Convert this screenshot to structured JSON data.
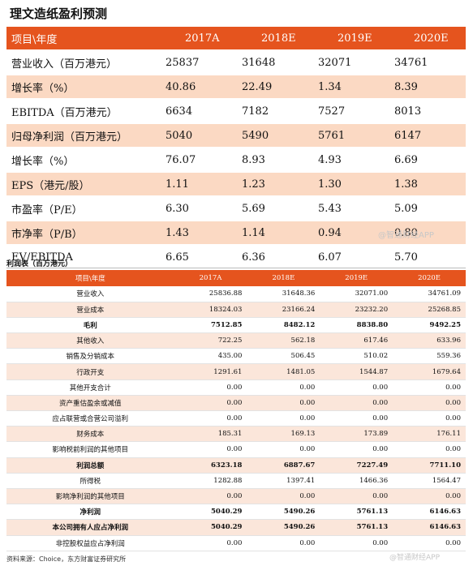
{
  "forecast": {
    "title": "理文造纸盈利预测",
    "header": [
      "项目\\年度",
      "2017A",
      "2018E",
      "2019E",
      "2020E"
    ],
    "rows": [
      {
        "label": "营业收入（百万港元）",
        "values": [
          "25837",
          "31648",
          "32071",
          "34761"
        ]
      },
      {
        "label": "增长率（%）",
        "values": [
          "40.86",
          "22.49",
          "1.34",
          "8.39"
        ]
      },
      {
        "label": "EBITDA（百万港元）",
        "values": [
          "6634",
          "7182",
          "7527",
          "8013"
        ]
      },
      {
        "label": "归母净利润（百万港元）",
        "values": [
          "5040",
          "5490",
          "5761",
          "6147"
        ]
      },
      {
        "label": "增长率（%）",
        "values": [
          "76.07",
          "8.93",
          "4.93",
          "6.69"
        ]
      },
      {
        "label": "EPS（港元/股）",
        "values": [
          "1.11",
          "1.23",
          "1.30",
          "1.38"
        ]
      },
      {
        "label": "市盈率（P/E）",
        "values": [
          "6.30",
          "5.69",
          "5.43",
          "5.09"
        ]
      },
      {
        "label": "市净率（P/B）",
        "values": [
          "1.43",
          "1.14",
          "0.94",
          "0.80"
        ]
      },
      {
        "label": "EV/EBITDA",
        "values": [
          "6.65",
          "6.36",
          "6.07",
          "5.70"
        ]
      }
    ],
    "watermark": "@智通财经APP"
  },
  "income": {
    "title": "利润表（百万港元）",
    "header": [
      "项目\\年度",
      "2017A",
      "2018E",
      "2019E",
      "2020E"
    ],
    "rows": [
      {
        "label": "营业收入",
        "values": [
          "25836.88",
          "31648.36",
          "32071.00",
          "34761.09"
        ],
        "bold": false
      },
      {
        "label": "营业成本",
        "values": [
          "18324.03",
          "23166.24",
          "23232.20",
          "25268.85"
        ],
        "bold": false
      },
      {
        "label": "毛利",
        "values": [
          "7512.85",
          "8482.12",
          "8838.80",
          "9492.25"
        ],
        "bold": true
      },
      {
        "label": "其他收入",
        "values": [
          "722.25",
          "562.18",
          "617.46",
          "633.96"
        ],
        "bold": false
      },
      {
        "label": "销售及分销成本",
        "values": [
          "435.00",
          "506.45",
          "510.02",
          "559.36"
        ],
        "bold": false
      },
      {
        "label": "行政开支",
        "values": [
          "1291.61",
          "1481.05",
          "1544.87",
          "1679.64"
        ],
        "bold": false
      },
      {
        "label": "其他开支合计",
        "values": [
          "0.00",
          "0.00",
          "0.00",
          "0.00"
        ],
        "bold": false
      },
      {
        "label": "资产重估盈余或减值",
        "values": [
          "0.00",
          "0.00",
          "0.00",
          "0.00"
        ],
        "bold": false
      },
      {
        "label": "应占联营或合营公司溢利",
        "values": [
          "0.00",
          "0.00",
          "0.00",
          "0.00"
        ],
        "bold": false
      },
      {
        "label": "财务成本",
        "values": [
          "185.31",
          "169.13",
          "173.89",
          "176.11"
        ],
        "bold": false
      },
      {
        "label": "影响税前利润的其他项目",
        "values": [
          "0.00",
          "0.00",
          "0.00",
          "0.00"
        ],
        "bold": false
      },
      {
        "label": "利润总额",
        "values": [
          "6323.18",
          "6887.67",
          "7227.49",
          "7711.10"
        ],
        "bold": true
      },
      {
        "label": "所得税",
        "values": [
          "1282.88",
          "1397.41",
          "1466.36",
          "1564.47"
        ],
        "bold": false
      },
      {
        "label": "影响净利润的其他项目",
        "values": [
          "0.00",
          "0.00",
          "0.00",
          "0.00"
        ],
        "bold": false
      },
      {
        "label": "净利润",
        "values": [
          "5040.29",
          "5490.26",
          "5761.13",
          "6146.63"
        ],
        "bold": true
      },
      {
        "label": "本公司拥有人应占净利润",
        "values": [
          "5040.29",
          "5490.26",
          "5761.13",
          "6146.63"
        ],
        "bold": true
      },
      {
        "label": "非控股权益应占净利润",
        "values": [
          "0.00",
          "0.00",
          "0.00",
          "0.00"
        ],
        "bold": false
      }
    ],
    "source": "资料来源：Choice，东方财富证券研究所",
    "watermark": "@智通财经APP"
  }
}
